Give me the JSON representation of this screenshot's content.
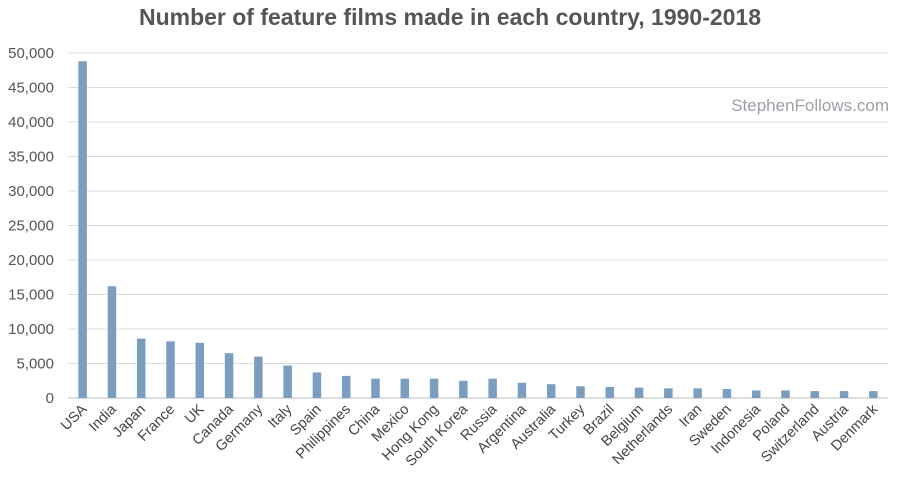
{
  "watermark": "StephenFollows.com",
  "chart_data": {
    "type": "bar",
    "title": "Number of feature films made in each country, 1990-2018",
    "xlabel": "",
    "ylabel": "",
    "ylim": [
      0,
      50000
    ],
    "yticks": [
      0,
      5000,
      10000,
      15000,
      20000,
      25000,
      30000,
      35000,
      40000,
      45000,
      50000
    ],
    "ytick_labels": [
      "0",
      "5,000",
      "10,000",
      "15,000",
      "20,000",
      "25,000",
      "30,000",
      "35,000",
      "40,000",
      "45,000",
      "50,000"
    ],
    "grid": true,
    "bar_color": "#7a9ebf",
    "categories": [
      "USA",
      "India",
      "Japan",
      "France",
      "UK",
      "Canada",
      "Germany",
      "Italy",
      "Spain",
      "Philippines",
      "China",
      "Mexico",
      "Hong Kong",
      "South Korea",
      "Russia",
      "Argentina",
      "Australia",
      "Turkey",
      "Brazil",
      "Belgium",
      "Netherlands",
      "Iran",
      "Sweden",
      "Indonesia",
      "Poland",
      "Switzerland",
      "Austria",
      "Denmark"
    ],
    "values": [
      48800,
      16200,
      8600,
      8200,
      8000,
      6500,
      6000,
      4700,
      3700,
      3200,
      2800,
      2800,
      2800,
      2500,
      2800,
      2200,
      2000,
      1700,
      1600,
      1500,
      1400,
      1400,
      1300,
      1100,
      1100,
      1000,
      1000,
      1000
    ]
  }
}
